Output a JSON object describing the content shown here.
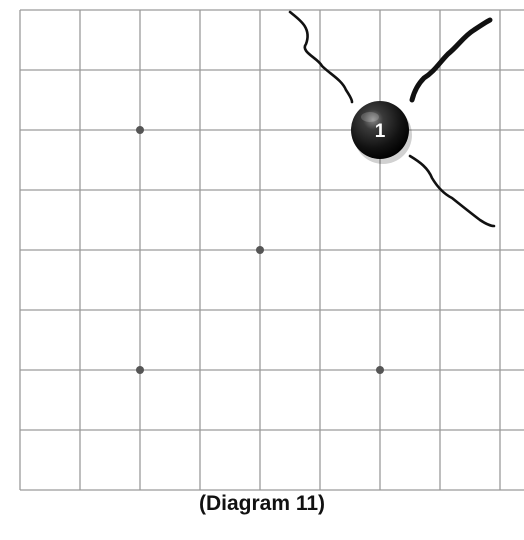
{
  "board": {
    "columns": 9,
    "rows": 8,
    "line_color": "#9a9a9a",
    "hoshi_points": [
      {
        "col": 2,
        "row": 2
      },
      {
        "col": 4,
        "row": 4
      },
      {
        "col": 2,
        "row": 6
      },
      {
        "col": 6,
        "row": 6
      }
    ]
  },
  "stones": [
    {
      "color": "black",
      "col": 6,
      "row": 2,
      "label": "1"
    }
  ],
  "strokes_color": "#111111",
  "caption": "(Diagram 11)"
}
